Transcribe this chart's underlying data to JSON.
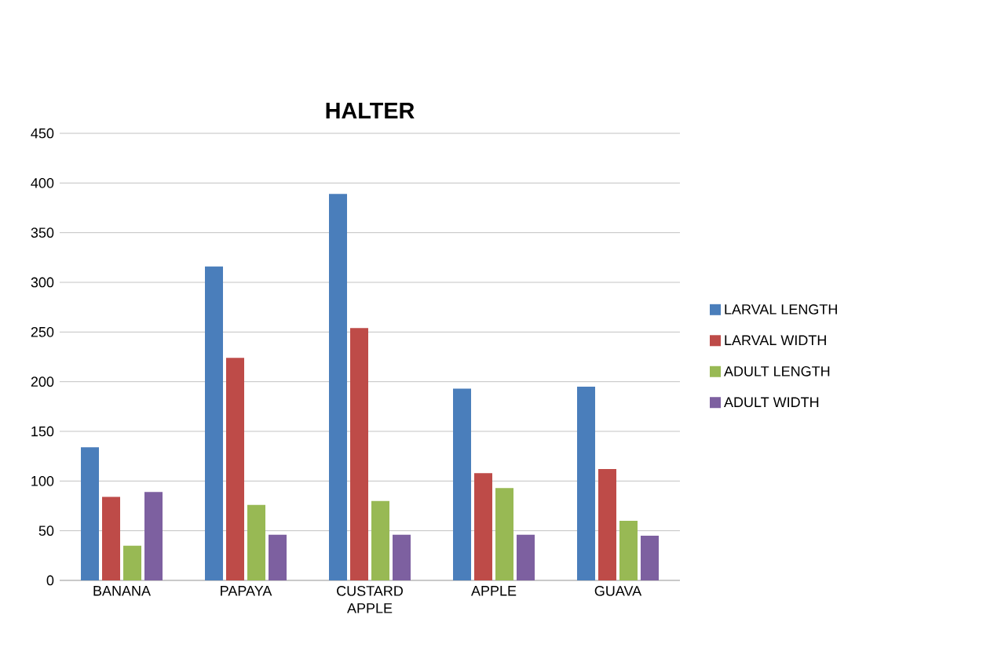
{
  "chart_data": {
    "type": "bar",
    "title": "HALTER",
    "categories": [
      "BANANA",
      "PAPAYA",
      "CUSTARD APPLE",
      "APPLE",
      "GUAVA"
    ],
    "series": [
      {
        "name": "LARVAL LENGTH",
        "color": "#4a7ebb",
        "values": [
          134,
          316,
          389,
          193,
          195
        ]
      },
      {
        "name": "LARVAL WIDTH",
        "color": "#be4b48",
        "values": [
          84,
          224,
          254,
          108,
          112
        ]
      },
      {
        "name": "ADULT LENGTH",
        "color": "#98b954",
        "values": [
          35,
          76,
          80,
          93,
          60
        ]
      },
      {
        "name": "ADULT WIDTH",
        "color": "#7d60a0",
        "values": [
          89,
          46,
          46,
          46,
          45
        ]
      }
    ],
    "ylim": [
      0,
      450
    ],
    "yticks": [
      0,
      50,
      100,
      150,
      200,
      250,
      300,
      350,
      400,
      450
    ],
    "grid": "y",
    "legend": "right"
  }
}
